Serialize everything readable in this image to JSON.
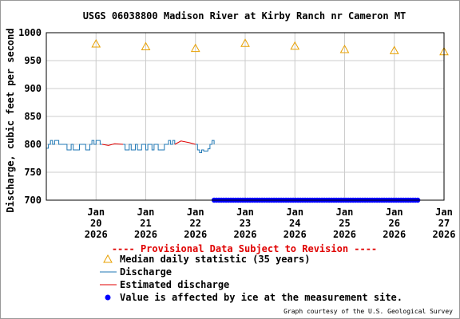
{
  "chart_data": {
    "type": "line",
    "title": "USGS 06038800 Madison River at Kirby Ranch nr Cameron MT",
    "ylabel": "Discharge, cubic feet per second",
    "xlabel": "",
    "ylim": [
      700,
      1000
    ],
    "yticks": [
      700,
      750,
      800,
      850,
      900,
      950,
      1000
    ],
    "x_range_days": [
      "2026-01-19",
      "2026-01-27"
    ],
    "xticks": [
      {
        "month": "Jan",
        "day": "20",
        "year": "2026"
      },
      {
        "month": "Jan",
        "day": "21",
        "year": "2026"
      },
      {
        "month": "Jan",
        "day": "22",
        "year": "2026"
      },
      {
        "month": "Jan",
        "day": "23",
        "year": "2026"
      },
      {
        "month": "Jan",
        "day": "24",
        "year": "2026"
      },
      {
        "month": "Jan",
        "day": "25",
        "year": "2026"
      },
      {
        "month": "Jan",
        "day": "26",
        "year": "2026"
      },
      {
        "month": "Jan",
        "day": "27",
        "year": "2026"
      }
    ],
    "grid": true,
    "provisional_note": "---- Provisional Data Subject to Revision ----",
    "legend": [
      {
        "label": "Median daily statistic (35 years)",
        "marker": "triangle",
        "color": "#E8A000"
      },
      {
        "label": "Discharge",
        "marker": "line",
        "color": "#1F77B4"
      },
      {
        "label": "Estimated discharge",
        "marker": "line",
        "color": "#E00000"
      },
      {
        "label": "Value is affected by ice at the measurement site.",
        "marker": "dot",
        "color": "#0000FF"
      }
    ],
    "series": [
      {
        "name": "Median daily statistic (35 years)",
        "style": "triangle",
        "color": "#E8A000",
        "points": [
          {
            "x": "2026-01-20",
            "y": 980
          },
          {
            "x": "2026-01-21",
            "y": 975
          },
          {
            "x": "2026-01-22",
            "y": 972
          },
          {
            "x": "2026-01-23",
            "y": 981
          },
          {
            "x": "2026-01-24",
            "y": 976
          },
          {
            "x": "2026-01-25",
            "y": 970
          },
          {
            "x": "2026-01-26",
            "y": 968
          },
          {
            "x": "2026-01-27",
            "y": 966
          }
        ]
      },
      {
        "name": "Discharge",
        "style": "step-line",
        "color": "#1F77B4",
        "points": [
          {
            "x": "2026-01-19T00:00",
            "y": 793
          },
          {
            "x": "2026-01-19T01:00",
            "y": 800
          },
          {
            "x": "2026-01-19T02:00",
            "y": 807
          },
          {
            "x": "2026-01-19T03:00",
            "y": 800
          },
          {
            "x": "2026-01-19T04:00",
            "y": 807
          },
          {
            "x": "2026-01-19T06:00",
            "y": 800
          },
          {
            "x": "2026-01-19T09:00",
            "y": 800
          },
          {
            "x": "2026-01-19T10:00",
            "y": 790
          },
          {
            "x": "2026-01-19T12:00",
            "y": 800
          },
          {
            "x": "2026-01-19T13:00",
            "y": 790
          },
          {
            "x": "2026-01-19T16:00",
            "y": 800
          },
          {
            "x": "2026-01-19T18:00",
            "y": 800
          },
          {
            "x": "2026-01-19T19:00",
            "y": 790
          },
          {
            "x": "2026-01-19T21:00",
            "y": 800
          },
          {
            "x": "2026-01-19T22:00",
            "y": 807
          },
          {
            "x": "2026-01-19T23:00",
            "y": 800
          },
          {
            "x": "2026-01-20T00:00",
            "y": 807
          },
          {
            "x": "2026-01-20T02:00",
            "y": 800
          },
          {
            "x": "2026-01-20T03:00",
            "y": 800
          },
          {
            "x": "2026-01-20T13:00",
            "y": 800
          },
          {
            "x": "2026-01-20T14:00",
            "y": 790
          },
          {
            "x": "2026-01-20T16:00",
            "y": 800
          },
          {
            "x": "2026-01-20T17:00",
            "y": 790
          },
          {
            "x": "2026-01-20T19:00",
            "y": 800
          },
          {
            "x": "2026-01-20T20:00",
            "y": 790
          },
          {
            "x": "2026-01-20T22:00",
            "y": 800
          },
          {
            "x": "2026-01-21T00:00",
            "y": 790
          },
          {
            "x": "2026-01-21T01:00",
            "y": 800
          },
          {
            "x": "2026-01-21T03:00",
            "y": 790
          },
          {
            "x": "2026-01-21T04:00",
            "y": 800
          },
          {
            "x": "2026-01-21T06:00",
            "y": 790
          },
          {
            "x": "2026-01-21T09:00",
            "y": 800
          },
          {
            "x": "2026-01-21T11:00",
            "y": 807
          },
          {
            "x": "2026-01-21T12:00",
            "y": 800
          },
          {
            "x": "2026-01-21T13:00",
            "y": 807
          },
          {
            "x": "2026-01-21T14:00",
            "y": 800
          },
          {
            "x": "2026-01-22T00:00",
            "y": 800
          },
          {
            "x": "2026-01-22T01:00",
            "y": 790
          },
          {
            "x": "2026-01-22T02:00",
            "y": 785
          },
          {
            "x": "2026-01-22T03:00",
            "y": 790
          },
          {
            "x": "2026-01-22T04:00",
            "y": 788
          },
          {
            "x": "2026-01-22T06:00",
            "y": 792
          },
          {
            "x": "2026-01-22T07:00",
            "y": 800
          },
          {
            "x": "2026-01-22T08:00",
            "y": 807
          },
          {
            "x": "2026-01-22T09:00",
            "y": 800
          }
        ]
      },
      {
        "name": "Estimated discharge",
        "style": "line",
        "color": "#E00000",
        "points": [
          {
            "x": "2026-01-20T03:00",
            "y": 800
          },
          {
            "x": "2026-01-20T06:00",
            "y": 798
          },
          {
            "x": "2026-01-20T09:00",
            "y": 801
          },
          {
            "x": "2026-01-20T13:00",
            "y": 800
          },
          {
            "x": "2026-01-21T14:00",
            "y": 800
          },
          {
            "x": "2026-01-21T17:00",
            "y": 806
          },
          {
            "x": "2026-01-21T21:00",
            "y": 803
          },
          {
            "x": "2026-01-22T00:00",
            "y": 800
          }
        ]
      },
      {
        "name": "Value is affected by ice at the measurement site.",
        "style": "dots",
        "color": "#0000FF",
        "y": 700,
        "x_start": "2026-01-22T09:00",
        "x_end": "2026-01-26T12:00"
      }
    ]
  },
  "credit": "Graph courtesy of the U.S. Geological Survey"
}
